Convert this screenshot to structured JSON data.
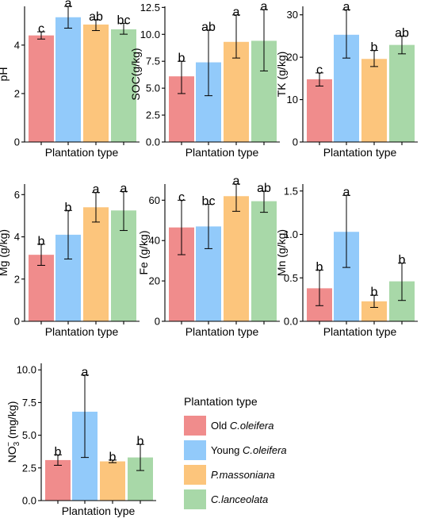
{
  "colors": {
    "old": "#F08C8C",
    "young": "#92CAFA",
    "massoniana": "#FCC57C",
    "lanceolata": "#A8D8A8"
  },
  "legend": {
    "title": "Plantation type",
    "items": [
      {
        "label": "Old ",
        "italic": "C.oleifera",
        "color": "#F08C8C"
      },
      {
        "label": "Young ",
        "italic": "C.oleifera",
        "color": "#92CAFA"
      },
      {
        "label": "",
        "italic": "P.massoniana",
        "color": "#FCC57C"
      },
      {
        "label": "",
        "italic": "C.lanceolata",
        "color": "#A8D8A8"
      }
    ]
  },
  "chart_data": [
    {
      "type": "bar",
      "ylabel": "pH",
      "xlabel": "Plantation type",
      "ylim": [
        0,
        5.6
      ],
      "ticks": [
        "0",
        "2",
        "4"
      ],
      "tick_values": [
        0,
        2,
        4
      ],
      "values": [
        4.4,
        5.15,
        4.85,
        4.65
      ],
      "err_low": [
        4.25,
        4.7,
        4.6,
        4.45
      ],
      "err_high": [
        4.55,
        5.6,
        5.05,
        4.9
      ],
      "letters": [
        "c",
        "a",
        "ab",
        "bc"
      ]
    },
    {
      "type": "bar",
      "ylabel": "SOC(g/kg)",
      "xlabel": "Plantation type",
      "ylim": [
        0,
        12.6
      ],
      "ticks": [
        "0.0",
        "2.5",
        "5.0",
        "7.5",
        "10.0",
        "12.5"
      ],
      "tick_values": [
        0,
        2.5,
        5,
        7.5,
        10,
        12.5
      ],
      "values": [
        6.1,
        7.4,
        9.3,
        9.4
      ],
      "err_low": [
        4.5,
        4.3,
        7.8,
        6.6
      ],
      "err_high": [
        7.5,
        10.4,
        11.8,
        12.3
      ],
      "letters": [
        "b",
        "ab",
        "a",
        "a"
      ]
    },
    {
      "type": "bar",
      "ylabel": "TK (g/kg)",
      "xlabel": "Plantation type",
      "ylim": [
        0,
        32
      ],
      "ticks": [
        "0",
        "10",
        "20",
        "30"
      ],
      "tick_values": [
        0,
        10,
        20,
        30
      ],
      "values": [
        14.8,
        25.3,
        19.6,
        22.9
      ],
      "err_low": [
        13.2,
        19.8,
        17.8,
        20.8
      ],
      "err_high": [
        16.3,
        31.2,
        21.6,
        25.0
      ],
      "letters": [
        "c",
        "a",
        "b",
        "ab"
      ]
    },
    {
      "type": "bar",
      "ylabel": "Mg (g/kg)",
      "xlabel": "Plantation type",
      "ylim": [
        0,
        6.5
      ],
      "ticks": [
        "0",
        "2",
        "4",
        "6"
      ],
      "tick_values": [
        0,
        2,
        4,
        6
      ],
      "values": [
        3.15,
        4.1,
        5.4,
        5.25
      ],
      "err_low": [
        2.65,
        2.95,
        4.7,
        4.3
      ],
      "err_high": [
        3.65,
        5.25,
        6.1,
        6.15
      ],
      "letters": [
        "b",
        "b",
        "a",
        "a"
      ]
    },
    {
      "type": "bar",
      "ylabel": "Fe (g/kg)",
      "xlabel": "Plantation type",
      "ylim": [
        0,
        68
      ],
      "ticks": [
        "0",
        "20",
        "40",
        "60"
      ],
      "tick_values": [
        0,
        20,
        40,
        60
      ],
      "values": [
        46.5,
        47.0,
        62.0,
        59.5
      ],
      "err_low": [
        33.0,
        36.0,
        54.5,
        54.0
      ],
      "err_high": [
        60.0,
        58.0,
        68.0,
        64.5
      ],
      "letters": [
        "c",
        "bc",
        "a",
        "ab"
      ]
    },
    {
      "type": "bar",
      "ylabel": "Mn (g/kg)",
      "xlabel": "Plantation type",
      "ylim": [
        0,
        1.58
      ],
      "ticks": [
        "0.0",
        "0.5",
        "1.0",
        "1.5"
      ],
      "tick_values": [
        0,
        0.5,
        1,
        1.5
      ],
      "values": [
        0.38,
        1.03,
        0.23,
        0.46
      ],
      "err_low": [
        0.18,
        0.62,
        0.16,
        0.24
      ],
      "err_high": [
        0.59,
        1.45,
        0.3,
        0.67
      ],
      "letters": [
        "b",
        "a",
        "b",
        "b"
      ]
    },
    {
      "type": "bar",
      "ylabel": "NO",
      "ylabel_sub": "3",
      "ylabel_sup": "−",
      "ylabel_tail": " (mg/kg)",
      "xlabel": "Plantation type",
      "ylim": [
        0,
        10.5
      ],
      "ticks": [
        "0.0",
        "2.5",
        "5.0",
        "7.5",
        "10.0"
      ],
      "tick_values": [
        0,
        2.5,
        5,
        7.5,
        10
      ],
      "values": [
        3.1,
        6.8,
        3.0,
        3.3
      ],
      "err_low": [
        2.7,
        3.3,
        2.9,
        2.3
      ],
      "err_high": [
        3.5,
        9.6,
        3.1,
        4.3
      ],
      "letters": [
        "b",
        "a",
        "b",
        "b"
      ]
    }
  ]
}
